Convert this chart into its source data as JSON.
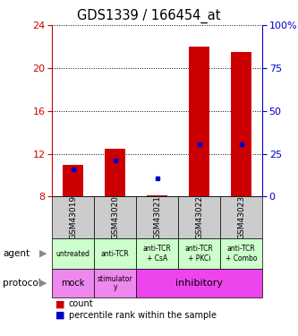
{
  "title": "GDS1339 / 166454_at",
  "samples": [
    "GSM43019",
    "GSM43020",
    "GSM43021",
    "GSM43022",
    "GSM43023"
  ],
  "bar_base": 8.0,
  "bar_tops": [
    11.0,
    12.5,
    8.15,
    22.0,
    21.5
  ],
  "blue_dot_y": [
    10.5,
    11.4,
    9.7,
    12.9,
    12.9
  ],
  "ylim_left": [
    8,
    24
  ],
  "yticks_left": [
    8,
    12,
    16,
    20,
    24
  ],
  "ylim_right": [
    0,
    100
  ],
  "yticks_right": [
    0,
    25,
    50,
    75,
    100
  ],
  "ytick_right_labels": [
    "0",
    "25",
    "50",
    "75",
    "100%"
  ],
  "bar_color": "#cc0000",
  "dot_color": "#0000cc",
  "bar_width": 0.5,
  "agent_labels": [
    "untreated",
    "anti-TCR",
    "anti-TCR\n+ CsA",
    "anti-TCR\n+ PKCi",
    "anti-TCR\n+ Combo"
  ],
  "agent_bg": "#ccffcc",
  "sample_bg": "#cccccc",
  "protocol_bg_mock": "#ee88ee",
  "protocol_bg_stim": "#ee88ee",
  "protocol_bg_inhib": "#ee44ee",
  "left_tick_color": "#cc0000",
  "right_tick_color": "#0000cc",
  "grid_dotted_at": [
    12,
    16,
    20
  ],
  "legend_count_color": "#cc0000",
  "legend_pct_color": "#0000cc"
}
